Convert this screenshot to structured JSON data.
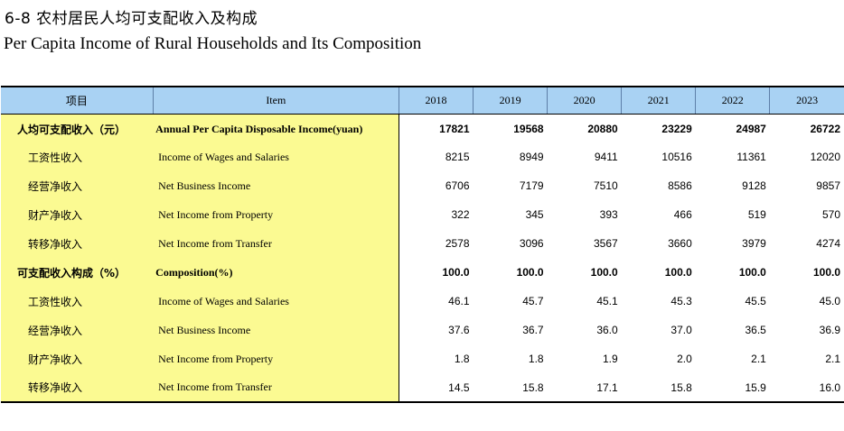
{
  "title_cn": "6-8  农村居民人均可支配收入及构成",
  "title_en": "Per Capita Income of Rural Households and Its Composition",
  "header": {
    "item_cn": "项目",
    "item_en": "Item",
    "years": [
      "2018",
      "2019",
      "2020",
      "2021",
      "2022",
      "2023"
    ]
  },
  "rows": [
    {
      "cn": "人均可支配收入（元）",
      "en": "Annual Per Capita Disposable Income(yuan)",
      "bold": true,
      "values": [
        "17821",
        "19568",
        "20880",
        "23229",
        "24987",
        "26722"
      ]
    },
    {
      "cn": "工资性收入",
      "en": "Income of Wages and Salaries",
      "bold": false,
      "values": [
        "8215",
        "8949",
        "9411",
        "10516",
        "11361",
        "12020"
      ]
    },
    {
      "cn": "经营净收入",
      "en": "Net Business Income",
      "bold": false,
      "values": [
        "6706",
        "7179",
        "7510",
        "8586",
        "9128",
        "9857"
      ]
    },
    {
      "cn": "财产净收入",
      "en": "Net Income from  Property",
      "bold": false,
      "values": [
        "322",
        "345",
        "393",
        "466",
        "519",
        "570"
      ]
    },
    {
      "cn": "转移净收入",
      "en": "Net Income from Transfer",
      "bold": false,
      "values": [
        "2578",
        "3096",
        "3567",
        "3660",
        "3979",
        "4274"
      ]
    },
    {
      "cn": "可支配收入构成（%）",
      "en": "Composition(%)",
      "bold": true,
      "values": [
        "100.0",
        "100.0",
        "100.0",
        "100.0",
        "100.0",
        "100.0"
      ]
    },
    {
      "cn": "工资性收入",
      "en": "Income of Wages and Salaries",
      "bold": false,
      "values": [
        "46.1",
        "45.7",
        "45.1",
        "45.3",
        "45.5",
        "45.0"
      ]
    },
    {
      "cn": "经营净收入",
      "en": "Net Business Income",
      "bold": false,
      "values": [
        "37.6",
        "36.7",
        "36.0",
        "37.0",
        "36.5",
        "36.9"
      ]
    },
    {
      "cn": "财产净收入",
      "en": "Net Income from  Property",
      "bold": false,
      "values": [
        "1.8",
        "1.8",
        "1.9",
        "2.0",
        "2.1",
        "2.1"
      ]
    },
    {
      "cn": "转移净收入",
      "en": "Net Income from Transfer",
      "bold": false,
      "values": [
        "14.5",
        "15.8",
        "17.1",
        "15.8",
        "15.9",
        "16.0"
      ]
    }
  ]
}
